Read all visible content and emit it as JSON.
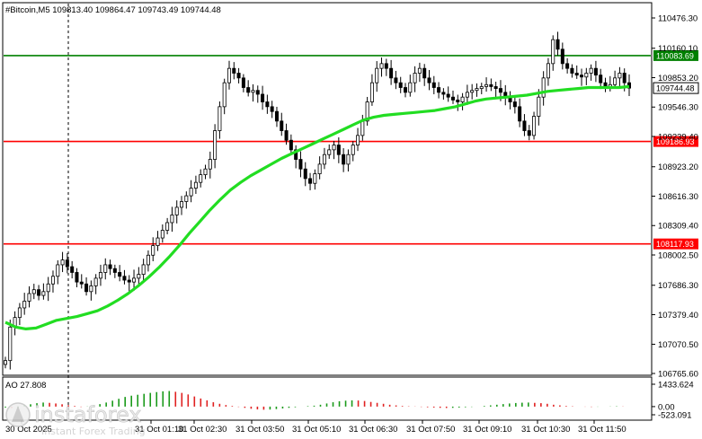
{
  "chart_data": {
    "type": "candlestick",
    "title": "#Bitcoin,M5  109813.40 109864.47 109743.49 109744.48",
    "symbol": "#Bitcoin,M5",
    "ohlc_header": [
      "109813.40",
      "109864.47",
      "109743.49",
      "109744.48"
    ],
    "y_ticks": [
      "110476.30",
      "110160.10",
      "109853.20",
      "109546.30",
      "109239.40",
      "108923.20",
      "108616.30",
      "108309.40",
      "108002.50",
      "107686.30",
      "107379.40",
      "107070.50",
      "106765.60"
    ],
    "y_range": [
      106765.6,
      110476.3
    ],
    "levels": [
      {
        "value": 110083.69,
        "label": "110083.69",
        "color": "#008000"
      },
      {
        "value": 109186.93,
        "label": "109186.93",
        "color": "#ff0000"
      },
      {
        "value": 108117.93,
        "label": "108117.93",
        "color": "#ff0000"
      }
    ],
    "current_price": {
      "value": 109744.48,
      "label": "109744.48"
    },
    "x_ticks": [
      "30 Oct 2025",
      "31 Oct 01:10",
      "31 Oct 02:30",
      "31 Oct 03:50",
      "31 Oct 05:10",
      "31 Oct 06:30",
      "31 Oct 07:50",
      "31 Oct 09:10",
      "31 Oct 10:30",
      "31 Oct 11:50"
    ],
    "candles_close": [
      106900,
      107250,
      107350,
      107450,
      107520,
      107600,
      107640,
      107580,
      107620,
      107700,
      107780,
      107900,
      107950,
      107880,
      107820,
      107720,
      107700,
      107620,
      107680,
      107760,
      107820,
      107900,
      107860,
      107820,
      107780,
      107740,
      107720,
      107760,
      107800,
      107900,
      108000,
      108100,
      108180,
      108260,
      108340,
      108420,
      108500,
      108560,
      108620,
      108700,
      108760,
      108840,
      108900,
      109000,
      109300,
      109550,
      109800,
      109950,
      109900,
      109850,
      109750,
      109700,
      109720,
      109680,
      109600,
      109550,
      109500,
      109400,
      109300,
      109200,
      109100,
      109000,
      108900,
      108800,
      108750,
      108850,
      108950,
      109050,
      109100,
      109150,
      109050,
      108950,
      109050,
      109150,
      109250,
      109400,
      109600,
      109800,
      109950,
      110000,
      109950,
      109850,
      109800,
      109750,
      109700,
      109800,
      109900,
      109950,
      109850,
      109800,
      109750,
      109700,
      109680,
      109650,
      109620,
      109600,
      109650,
      109700,
      109720,
      109740,
      109760,
      109780,
      109760,
      109740,
      109700,
      109650,
      109600,
      109550,
      109400,
      109300,
      109250,
      109450,
      109650,
      109850,
      110000,
      110250,
      110150,
      110000,
      109950,
      109900,
      109880,
      109860,
      109900,
      109950,
      109880,
      109800,
      109760,
      109780,
      109850,
      109900,
      109800,
      109744
    ],
    "ma_series": [
      107300,
      107250,
      107230,
      107240,
      107280,
      107320,
      107340,
      107360,
      107390,
      107420,
      107470,
      107530,
      107600,
      107680,
      107770,
      107870,
      107980,
      108100,
      108230,
      108350,
      108470,
      108580,
      108680,
      108760,
      108830,
      108890,
      108950,
      109010,
      109060,
      109110,
      109160,
      109210,
      109260,
      109310,
      109360,
      109410,
      109440,
      109460,
      109470,
      109480,
      109490,
      109500,
      109510,
      109530,
      109550,
      109580,
      109610,
      109630,
      109640,
      109650,
      109660,
      109670,
      109690,
      109710,
      109720,
      109730,
      109740,
      109750,
      109750,
      109750,
      109750,
      109760
    ],
    "indicator": {
      "name": "AO",
      "label": "AO 27.808",
      "y_ticks": [
        "1433.624",
        "0.00",
        "-523.091"
      ],
      "y_range": [
        -523.091,
        1433.624
      ],
      "values": [
        -60,
        -90,
        -40,
        80,
        150,
        220,
        260,
        240,
        200,
        150,
        90,
        40,
        -20,
        10,
        80,
        160,
        260,
        380,
        500,
        620,
        700,
        760,
        820,
        880,
        930,
        980,
        1000,
        950,
        880,
        780,
        650,
        520,
        400,
        280,
        180,
        100,
        40,
        -20,
        -80,
        -140,
        -180,
        -200,
        -190,
        -160,
        -120,
        -80,
        -40,
        0,
        30,
        60,
        120,
        200,
        280,
        340,
        380,
        400,
        390,
        360,
        300,
        240,
        180,
        120,
        80,
        40,
        20,
        10,
        -20,
        -40,
        -60,
        -80,
        -90,
        -80,
        -60,
        -40,
        -20,
        0,
        40,
        80,
        120,
        160,
        200,
        230,
        250,
        260,
        240,
        220,
        180,
        120,
        80,
        40,
        20,
        0,
        -10,
        -20,
        -10,
        0,
        10,
        20,
        10,
        0
      ]
    }
  },
  "watermark": {
    "brand": "instaforex",
    "tagline": "Instant Forex Trading"
  }
}
